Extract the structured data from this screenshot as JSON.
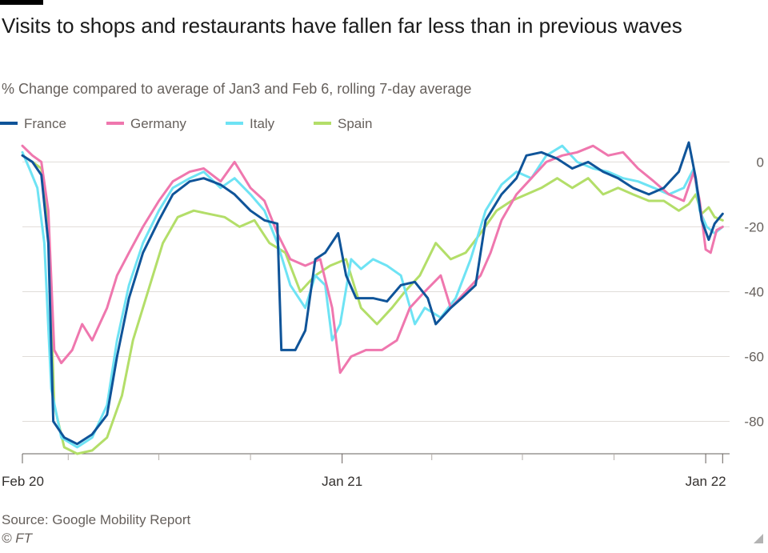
{
  "title": "Visits to shops and restaurants have fallen far less than in previous waves",
  "subtitle": "% Change compared to average of Jan3 and Feb 6, rolling 7-day average",
  "source": "Source: Google Mobility Report",
  "copyright": "© FT",
  "legend": [
    {
      "name": "France",
      "color": "#0f5499"
    },
    {
      "name": "Germany",
      "color": "#ef77ae"
    },
    {
      "name": "Italy",
      "color": "#6ee3f4"
    },
    {
      "name": "Spain",
      "color": "#b3de69"
    }
  ],
  "chart_data": {
    "type": "line",
    "x_axis": {
      "type": "date",
      "ticks": [
        "Feb 20",
        "Jan 21",
        "Jan 22"
      ],
      "range": [
        "2020-02-15",
        "2022-01-25"
      ]
    },
    "y_axis": {
      "ticks": [
        "0",
        "-20",
        "-40",
        "-60",
        "-80"
      ],
      "ylim": [
        -90,
        8
      ],
      "position": "right"
    },
    "grid": true,
    "legend_position": "top-left",
    "series": [
      {
        "name": "France",
        "color": "#0f5499",
        "points": [
          [
            "2020-02-15",
            2
          ],
          [
            "2020-02-25",
            0
          ],
          [
            "2020-03-05",
            -4
          ],
          [
            "2020-03-12",
            -25
          ],
          [
            "2020-03-17",
            -80
          ],
          [
            "2020-03-28",
            -85
          ],
          [
            "2020-04-10",
            -87
          ],
          [
            "2020-04-25",
            -84
          ],
          [
            "2020-05-10",
            -78
          ],
          [
            "2020-05-20",
            -60
          ],
          [
            "2020-06-01",
            -42
          ],
          [
            "2020-06-15",
            -28
          ],
          [
            "2020-07-01",
            -18
          ],
          [
            "2020-07-15",
            -10
          ],
          [
            "2020-08-01",
            -6
          ],
          [
            "2020-08-15",
            -5
          ],
          [
            "2020-09-01",
            -7
          ],
          [
            "2020-09-15",
            -10
          ],
          [
            "2020-10-01",
            -15
          ],
          [
            "2020-10-15",
            -18
          ],
          [
            "2020-10-28",
            -19
          ],
          [
            "2020-11-01",
            -58
          ],
          [
            "2020-11-15",
            -58
          ],
          [
            "2020-11-25",
            -52
          ],
          [
            "2020-12-05",
            -30
          ],
          [
            "2020-12-15",
            -28
          ],
          [
            "2020-12-28",
            -22
          ],
          [
            "2021-01-05",
            -35
          ],
          [
            "2021-01-15",
            -42
          ],
          [
            "2021-02-01",
            -42
          ],
          [
            "2021-02-15",
            -43
          ],
          [
            "2021-03-01",
            -38
          ],
          [
            "2021-03-15",
            -37
          ],
          [
            "2021-03-28",
            -42
          ],
          [
            "2021-04-05",
            -50
          ],
          [
            "2021-04-20",
            -45
          ],
          [
            "2021-05-01",
            -42
          ],
          [
            "2021-05-15",
            -38
          ],
          [
            "2021-05-25",
            -18
          ],
          [
            "2021-06-10",
            -10
          ],
          [
            "2021-06-25",
            -5
          ],
          [
            "2021-07-05",
            2
          ],
          [
            "2021-07-20",
            3
          ],
          [
            "2021-08-05",
            1
          ],
          [
            "2021-08-20",
            -2
          ],
          [
            "2021-09-05",
            0
          ],
          [
            "2021-09-20",
            -3
          ],
          [
            "2021-10-05",
            -5
          ],
          [
            "2021-10-20",
            -8
          ],
          [
            "2021-11-05",
            -10
          ],
          [
            "2021-11-20",
            -8
          ],
          [
            "2021-12-05",
            -3
          ],
          [
            "2021-12-15",
            6
          ],
          [
            "2021-12-22",
            -5
          ],
          [
            "2021-12-28",
            -18
          ],
          [
            "2022-01-04",
            -24
          ],
          [
            "2022-01-10",
            -19
          ],
          [
            "2022-01-18",
            -16
          ]
        ]
      },
      {
        "name": "Germany",
        "color": "#ef77ae",
        "points": [
          [
            "2020-02-15",
            5
          ],
          [
            "2020-02-25",
            2
          ],
          [
            "2020-03-05",
            0
          ],
          [
            "2020-03-12",
            -15
          ],
          [
            "2020-03-18",
            -58
          ],
          [
            "2020-03-25",
            -62
          ],
          [
            "2020-04-05",
            -58
          ],
          [
            "2020-04-15",
            -50
          ],
          [
            "2020-04-25",
            -55
          ],
          [
            "2020-05-10",
            -45
          ],
          [
            "2020-05-20",
            -35
          ],
          [
            "2020-06-01",
            -28
          ],
          [
            "2020-06-15",
            -20
          ],
          [
            "2020-07-01",
            -12
          ],
          [
            "2020-07-15",
            -6
          ],
          [
            "2020-08-01",
            -3
          ],
          [
            "2020-08-15",
            -2
          ],
          [
            "2020-09-01",
            -6
          ],
          [
            "2020-09-15",
            0
          ],
          [
            "2020-10-01",
            -8
          ],
          [
            "2020-10-15",
            -12
          ],
          [
            "2020-10-28",
            -22
          ],
          [
            "2020-11-10",
            -30
          ],
          [
            "2020-11-25",
            -32
          ],
          [
            "2020-12-10",
            -30
          ],
          [
            "2020-12-22",
            -45
          ],
          [
            "2020-12-30",
            -65
          ],
          [
            "2021-01-10",
            -60
          ],
          [
            "2021-01-25",
            -58
          ],
          [
            "2021-02-10",
            -58
          ],
          [
            "2021-02-25",
            -55
          ],
          [
            "2021-03-10",
            -45
          ],
          [
            "2021-03-25",
            -40
          ],
          [
            "2021-04-10",
            -35
          ],
          [
            "2021-04-20",
            -45
          ],
          [
            "2021-05-05",
            -40
          ],
          [
            "2021-05-20",
            -35
          ],
          [
            "2021-05-30",
            -28
          ],
          [
            "2021-06-10",
            -18
          ],
          [
            "2021-06-25",
            -10
          ],
          [
            "2021-07-10",
            -5
          ],
          [
            "2021-07-25",
            0
          ],
          [
            "2021-08-10",
            2
          ],
          [
            "2021-08-25",
            3
          ],
          [
            "2021-09-10",
            5
          ],
          [
            "2021-09-25",
            2
          ],
          [
            "2021-10-10",
            3
          ],
          [
            "2021-10-25",
            -2
          ],
          [
            "2021-11-10",
            -6
          ],
          [
            "2021-11-25",
            -10
          ],
          [
            "2021-12-10",
            -12
          ],
          [
            "2021-12-20",
            -3
          ],
          [
            "2021-12-26",
            -12
          ],
          [
            "2022-01-01",
            -27
          ],
          [
            "2022-01-06",
            -28
          ],
          [
            "2022-01-12",
            -21
          ],
          [
            "2022-01-18",
            -20
          ]
        ]
      },
      {
        "name": "Italy",
        "color": "#6ee3f4",
        "points": [
          [
            "2020-02-15",
            3
          ],
          [
            "2020-02-22",
            -2
          ],
          [
            "2020-03-01",
            -8
          ],
          [
            "2020-03-08",
            -25
          ],
          [
            "2020-03-15",
            -70
          ],
          [
            "2020-03-25",
            -85
          ],
          [
            "2020-04-10",
            -88
          ],
          [
            "2020-04-25",
            -85
          ],
          [
            "2020-05-10",
            -75
          ],
          [
            "2020-05-20",
            -55
          ],
          [
            "2020-06-01",
            -38
          ],
          [
            "2020-06-15",
            -25
          ],
          [
            "2020-07-01",
            -15
          ],
          [
            "2020-07-15",
            -8
          ],
          [
            "2020-08-01",
            -5
          ],
          [
            "2020-08-15",
            -3
          ],
          [
            "2020-09-01",
            -8
          ],
          [
            "2020-09-15",
            -5
          ],
          [
            "2020-10-01",
            -10
          ],
          [
            "2020-10-15",
            -15
          ],
          [
            "2020-10-28",
            -25
          ],
          [
            "2020-11-10",
            -38
          ],
          [
            "2020-11-25",
            -45
          ],
          [
            "2020-12-05",
            -35
          ],
          [
            "2020-12-15",
            -38
          ],
          [
            "2020-12-22",
            -55
          ],
          [
            "2020-12-30",
            -50
          ],
          [
            "2021-01-10",
            -30
          ],
          [
            "2021-01-20",
            -33
          ],
          [
            "2021-02-01",
            -30
          ],
          [
            "2021-02-15",
            -32
          ],
          [
            "2021-03-01",
            -35
          ],
          [
            "2021-03-15",
            -50
          ],
          [
            "2021-03-25",
            -45
          ],
          [
            "2021-04-10",
            -48
          ],
          [
            "2021-04-25",
            -42
          ],
          [
            "2021-05-10",
            -30
          ],
          [
            "2021-05-25",
            -15
          ],
          [
            "2021-06-10",
            -7
          ],
          [
            "2021-06-25",
            -3
          ],
          [
            "2021-07-10",
            -5
          ],
          [
            "2021-07-25",
            2
          ],
          [
            "2021-08-10",
            5
          ],
          [
            "2021-08-25",
            0
          ],
          [
            "2021-09-10",
            -2
          ],
          [
            "2021-09-25",
            -3
          ],
          [
            "2021-10-10",
            -5
          ],
          [
            "2021-10-25",
            -6
          ],
          [
            "2021-11-10",
            -8
          ],
          [
            "2021-11-25",
            -10
          ],
          [
            "2021-12-10",
            -8
          ],
          [
            "2021-12-20",
            -2
          ],
          [
            "2021-12-26",
            -15
          ],
          [
            "2022-01-02",
            -20
          ],
          [
            "2022-01-10",
            -22
          ],
          [
            "2022-01-18",
            -20
          ]
        ]
      },
      {
        "name": "Spain",
        "color": "#b3de69",
        "points": [
          [
            "2020-02-15",
            2
          ],
          [
            "2020-02-25",
            0
          ],
          [
            "2020-03-05",
            -2
          ],
          [
            "2020-03-12",
            -20
          ],
          [
            "2020-03-18",
            -75
          ],
          [
            "2020-03-28",
            -88
          ],
          [
            "2020-04-10",
            -90
          ],
          [
            "2020-04-25",
            -89
          ],
          [
            "2020-05-10",
            -85
          ],
          [
            "2020-05-25",
            -72
          ],
          [
            "2020-06-05",
            -55
          ],
          [
            "2020-06-20",
            -40
          ],
          [
            "2020-07-05",
            -25
          ],
          [
            "2020-07-20",
            -17
          ],
          [
            "2020-08-05",
            -15
          ],
          [
            "2020-08-20",
            -16
          ],
          [
            "2020-09-05",
            -17
          ],
          [
            "2020-09-20",
            -20
          ],
          [
            "2020-10-05",
            -18
          ],
          [
            "2020-10-20",
            -25
          ],
          [
            "2020-11-05",
            -28
          ],
          [
            "2020-11-20",
            -40
          ],
          [
            "2020-12-05",
            -35
          ],
          [
            "2020-12-20",
            -32
          ],
          [
            "2021-01-05",
            -30
          ],
          [
            "2021-01-20",
            -45
          ],
          [
            "2021-02-05",
            -50
          ],
          [
            "2021-02-20",
            -45
          ],
          [
            "2021-03-05",
            -40
          ],
          [
            "2021-03-20",
            -35
          ],
          [
            "2021-04-05",
            -25
          ],
          [
            "2021-04-20",
            -30
          ],
          [
            "2021-05-05",
            -28
          ],
          [
            "2021-05-20",
            -22
          ],
          [
            "2021-06-05",
            -15
          ],
          [
            "2021-06-20",
            -12
          ],
          [
            "2021-07-05",
            -10
          ],
          [
            "2021-07-20",
            -8
          ],
          [
            "2021-08-05",
            -5
          ],
          [
            "2021-08-20",
            -8
          ],
          [
            "2021-09-05",
            -5
          ],
          [
            "2021-09-20",
            -10
          ],
          [
            "2021-10-05",
            -8
          ],
          [
            "2021-10-20",
            -10
          ],
          [
            "2021-11-05",
            -12
          ],
          [
            "2021-11-20",
            -12
          ],
          [
            "2021-12-05",
            -15
          ],
          [
            "2021-12-15",
            -13
          ],
          [
            "2021-12-22",
            -10
          ],
          [
            "2021-12-28",
            -16
          ],
          [
            "2022-01-04",
            -14
          ],
          [
            "2022-01-10",
            -17
          ],
          [
            "2022-01-18",
            -18
          ]
        ]
      }
    ]
  }
}
